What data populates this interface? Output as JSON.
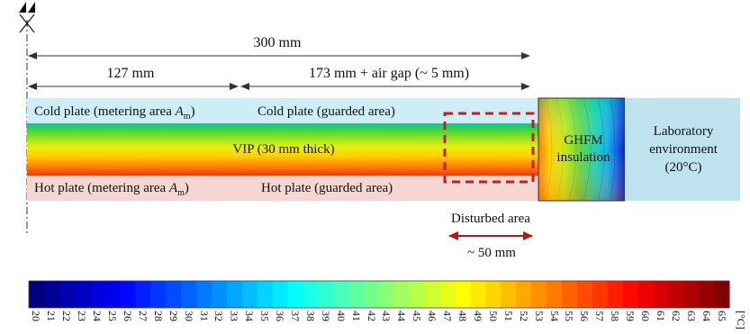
{
  "dimensions": {
    "total": "300 mm",
    "metering": "127 mm",
    "guarded": "173 mm + air gap (~ 5 mm)",
    "disturbed_width": "~ 50 mm"
  },
  "plates": {
    "cold_metering": [
      "Cold plate (metering area ",
      "A",
      "m",
      ")"
    ],
    "cold_guarded": "Cold plate (guarded area)",
    "hot_metering": [
      "Hot plate (metering area ",
      "A",
      "m",
      ")"
    ],
    "hot_guarded": "Hot plate (guarded area)"
  },
  "vip": "VIP (30 mm thick)",
  "ghfm": [
    "GHFM",
    "insulation"
  ],
  "lab": [
    "Laboratory",
    "environment",
    "(20°C)"
  ],
  "disturbed_area": "Disturbed area",
  "colorbar": {
    "min": 20,
    "max": 65,
    "unit": "[°C]",
    "ticks": [
      "20",
      "21",
      "22",
      "23",
      "24",
      "25",
      "26",
      "27",
      "28",
      "29",
      "30",
      "31",
      "32",
      "33",
      "34",
      "35",
      "36",
      "37",
      "38",
      "39",
      "40",
      "41",
      "42",
      "43",
      "44",
      "45",
      "46",
      "47",
      "48",
      "49",
      "50",
      "51",
      "52",
      "53",
      "54",
      "55",
      "56",
      "57",
      "58",
      "59",
      "60",
      "61",
      "62",
      "63",
      "64",
      "65"
    ]
  },
  "colors": {
    "cold_plate": "#cdeef6",
    "hot_plate": "#f6d6d2",
    "lab_env": "#bfe2ef",
    "dashed_box": "#cc1b1b",
    "arrow_red": "#b01a1a"
  }
}
